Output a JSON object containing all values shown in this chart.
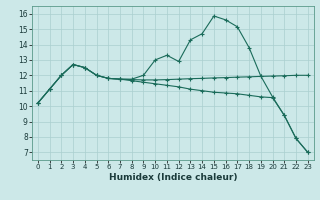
{
  "xlabel": "Humidex (Indice chaleur)",
  "bg_color": "#cce8e8",
  "line_color": "#1a6b5a",
  "grid_color": "#aacfcf",
  "xlim": [
    -0.5,
    23.5
  ],
  "ylim": [
    6.5,
    16.5
  ],
  "xticks": [
    0,
    1,
    2,
    3,
    4,
    5,
    6,
    7,
    8,
    9,
    10,
    11,
    12,
    13,
    14,
    15,
    16,
    17,
    18,
    19,
    20,
    21,
    22,
    23
  ],
  "yticks": [
    7,
    8,
    9,
    10,
    11,
    12,
    13,
    14,
    15,
    16
  ],
  "line1_x": [
    0,
    1,
    2,
    3,
    4,
    5,
    6,
    7,
    8,
    9,
    10,
    11,
    12,
    13,
    14,
    15,
    16,
    17,
    18,
    19,
    20,
    21,
    22,
    23
  ],
  "line1_y": [
    10.2,
    11.1,
    12.0,
    12.7,
    12.5,
    12.0,
    11.8,
    11.75,
    11.75,
    12.0,
    13.0,
    13.3,
    12.9,
    14.3,
    14.7,
    15.85,
    15.6,
    15.15,
    13.8,
    11.95,
    10.6,
    9.4,
    7.9,
    7.0
  ],
  "line2_x": [
    0,
    1,
    2,
    3,
    4,
    5,
    6,
    7,
    8,
    9,
    10,
    11,
    12,
    13,
    14,
    15,
    16,
    17,
    18,
    19,
    20,
    21,
    22,
    23
  ],
  "line2_y": [
    10.2,
    11.1,
    12.0,
    12.7,
    12.5,
    12.0,
    11.8,
    11.75,
    11.72,
    11.7,
    11.7,
    11.72,
    11.75,
    11.78,
    11.8,
    11.83,
    11.85,
    11.88,
    11.9,
    11.93,
    11.95,
    11.97,
    12.0,
    12.0
  ],
  "line3_x": [
    0,
    1,
    2,
    3,
    4,
    5,
    6,
    7,
    8,
    9,
    10,
    11,
    12,
    13,
    14,
    15,
    16,
    17,
    18,
    19,
    20,
    21,
    22,
    23
  ],
  "line3_y": [
    10.2,
    11.1,
    12.0,
    12.7,
    12.5,
    12.0,
    11.8,
    11.75,
    11.65,
    11.55,
    11.45,
    11.35,
    11.25,
    11.1,
    11.0,
    10.9,
    10.85,
    10.8,
    10.7,
    10.6,
    10.55,
    9.4,
    7.9,
    7.0
  ]
}
